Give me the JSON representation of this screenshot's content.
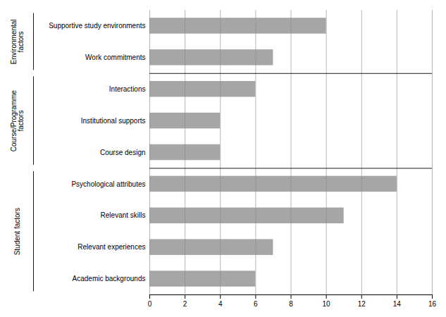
{
  "chart_data": {
    "type": "bar",
    "orientation": "horizontal",
    "categories": [
      "Academic backgrounds",
      "Relevant experiences",
      "Relevant skills",
      "Psychological attributes",
      "Course design",
      "Institutional supports",
      "Interactions",
      "Work commitments",
      "Supportive study environments"
    ],
    "values": [
      6,
      7,
      11,
      14,
      4,
      4,
      6,
      7,
      10
    ],
    "color": "#a6a6a6",
    "xlim": [
      0,
      16
    ],
    "xticks": [
      0,
      2,
      4,
      6,
      8,
      10,
      12,
      14,
      16
    ],
    "grid": true,
    "groups": [
      {
        "label": "Student factors",
        "categories": [
          "Academic backgrounds",
          "Relevant experiences",
          "Relevant skills",
          "Psychological attributes"
        ]
      },
      {
        "label": "Course/Programme\nfactors",
        "categories": [
          "Course design",
          "Institutional supports",
          "Interactions"
        ]
      },
      {
        "label": "Environmental\nfactors",
        "categories": [
          "Work commitments",
          "Supportive study environments"
        ]
      }
    ]
  }
}
